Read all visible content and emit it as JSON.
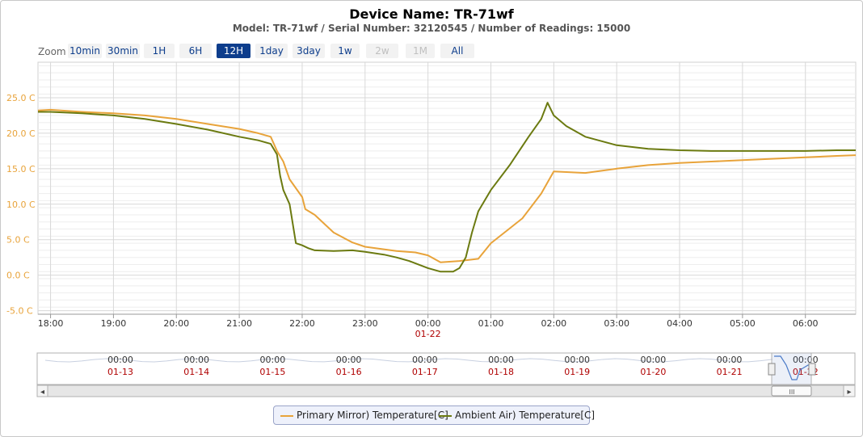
{
  "header": {
    "title": "Device Name: TR-71wf",
    "subtitle": "Model: TR-71wf / Serial Number: 32120545 / Number of Readings: 15000"
  },
  "zoom": {
    "label": "Zoom",
    "buttons": [
      {
        "label": "10min",
        "state": "normal"
      },
      {
        "label": "30min",
        "state": "normal"
      },
      {
        "label": "1H",
        "state": "normal"
      },
      {
        "label": "6H",
        "state": "normal"
      },
      {
        "label": "12H",
        "state": "selected"
      },
      {
        "label": "1day",
        "state": "normal"
      },
      {
        "label": "3day",
        "state": "normal"
      },
      {
        "label": "1w",
        "state": "normal"
      },
      {
        "label": "2w",
        "state": "disabled"
      },
      {
        "label": "1M",
        "state": "disabled"
      },
      {
        "label": "All",
        "state": "normal"
      }
    ]
  },
  "chart_data": {
    "type": "line",
    "title": "Device Name: TR-71wf",
    "subtitle": "Model: TR-71wf / Serial Number: 32120545 / Number of Readings: 15000",
    "x_unit": "hours since 18:00 on 01-21",
    "xlim": [
      -0.2,
      12.8
    ],
    "ylim": [
      -5.5,
      30
    ],
    "y_ticks": [
      -5.0,
      0.0,
      5.0,
      10.0,
      15.0,
      20.0,
      25.0
    ],
    "y_tick_labels": [
      "-5.0 C",
      "0.0 C",
      "5.0 C",
      "10.0 C",
      "15.0 C",
      "20.0 C",
      "25.0 C"
    ],
    "x_ticks": [
      0,
      1,
      2,
      3,
      4,
      5,
      6,
      7,
      8,
      9,
      10,
      11,
      12
    ],
    "x_tick_labels": [
      "18:00",
      "19:00",
      "20:00",
      "21:00",
      "22:00",
      "23:00",
      "00:00",
      "01:00",
      "02:00",
      "03:00",
      "04:00",
      "05:00",
      "06:00"
    ],
    "date_marker": {
      "x": 6,
      "label": "01-22"
    },
    "grid": true,
    "legend_position": "bottom-center",
    "colors": {
      "primary": "#e8a33a",
      "ambient": "#6b7a10",
      "axis_labels": "#e8a33a"
    },
    "series": [
      {
        "name": "Primary Mirror) Temperature[C]",
        "color": "#e8a33a",
        "x": [
          -0.2,
          0,
          0.5,
          1,
          1.5,
          2,
          2.5,
          3,
          3.3,
          3.5,
          3.6,
          3.7,
          3.8,
          4,
          4.05,
          4.2,
          4.5,
          4.8,
          5,
          5.5,
          5.8,
          6,
          6.2,
          6.5,
          6.8,
          7,
          7.5,
          7.8,
          8,
          8.5,
          9,
          9.5,
          10,
          10.5,
          11,
          11.5,
          12,
          12.5,
          12.8
        ],
        "y": [
          23.2,
          23.3,
          23.0,
          22.8,
          22.5,
          22.0,
          21.3,
          20.6,
          20.0,
          19.5,
          17.5,
          16.0,
          13.5,
          11.0,
          9.3,
          8.5,
          6.0,
          4.6,
          4.0,
          3.4,
          3.2,
          2.8,
          1.8,
          2.0,
          2.3,
          4.5,
          8.0,
          11.5,
          14.6,
          14.4,
          15.0,
          15.5,
          15.8,
          16.0,
          16.2,
          16.4,
          16.6,
          16.8,
          16.9
        ]
      },
      {
        "name": "Ambient Air) Temperature[C]",
        "color": "#6b7a10",
        "x": [
          -0.2,
          0,
          0.5,
          1,
          1.5,
          2,
          2.5,
          3,
          3.3,
          3.5,
          3.6,
          3.65,
          3.7,
          3.8,
          3.9,
          4.0,
          4.1,
          4.2,
          4.5,
          4.8,
          5,
          5.3,
          5.5,
          5.7,
          6,
          6.2,
          6.4,
          6.5,
          6.6,
          6.7,
          6.8,
          7,
          7.3,
          7.6,
          7.8,
          7.9,
          8.0,
          8.2,
          8.5,
          9,
          9.5,
          10,
          10.5,
          11,
          11.5,
          12,
          12.5,
          12.8
        ],
        "y": [
          23.0,
          23.0,
          22.8,
          22.5,
          22.0,
          21.3,
          20.5,
          19.5,
          19.0,
          18.5,
          17.0,
          14.0,
          12.0,
          10.0,
          4.5,
          4.2,
          3.8,
          3.5,
          3.4,
          3.5,
          3.3,
          2.9,
          2.5,
          2.0,
          1.0,
          0.5,
          0.5,
          1.0,
          2.5,
          6.0,
          9.0,
          12.0,
          15.5,
          19.5,
          22.0,
          24.3,
          22.5,
          21.0,
          19.5,
          18.3,
          17.8,
          17.6,
          17.5,
          17.5,
          17.5,
          17.5,
          17.6,
          17.6
        ]
      }
    ]
  },
  "navigator": {
    "labels": [
      {
        "time": "00:00",
        "date": "01-13"
      },
      {
        "time": "00:00",
        "date": "01-14"
      },
      {
        "time": "00:00",
        "date": "01-15"
      },
      {
        "time": "00:00",
        "date": "01-16"
      },
      {
        "time": "00:00",
        "date": "01-17"
      },
      {
        "time": "00:00",
        "date": "01-18"
      },
      {
        "time": "00:00",
        "date": "01-19"
      },
      {
        "time": "00:00",
        "date": "01-20"
      },
      {
        "time": "00:00",
        "date": "01-21"
      },
      {
        "time": "00:00",
        "date": "01-22"
      }
    ],
    "scroll_left_icon": "◂",
    "scroll_right_icon": "▸",
    "scroll_grip": "III"
  },
  "legend": {
    "items": [
      {
        "label": "Primary Mirror) Temperature[C]",
        "color": "#e8a33a"
      },
      {
        "label": "Ambient Air) Temperature[C]",
        "color": "#6b7a10"
      }
    ]
  }
}
